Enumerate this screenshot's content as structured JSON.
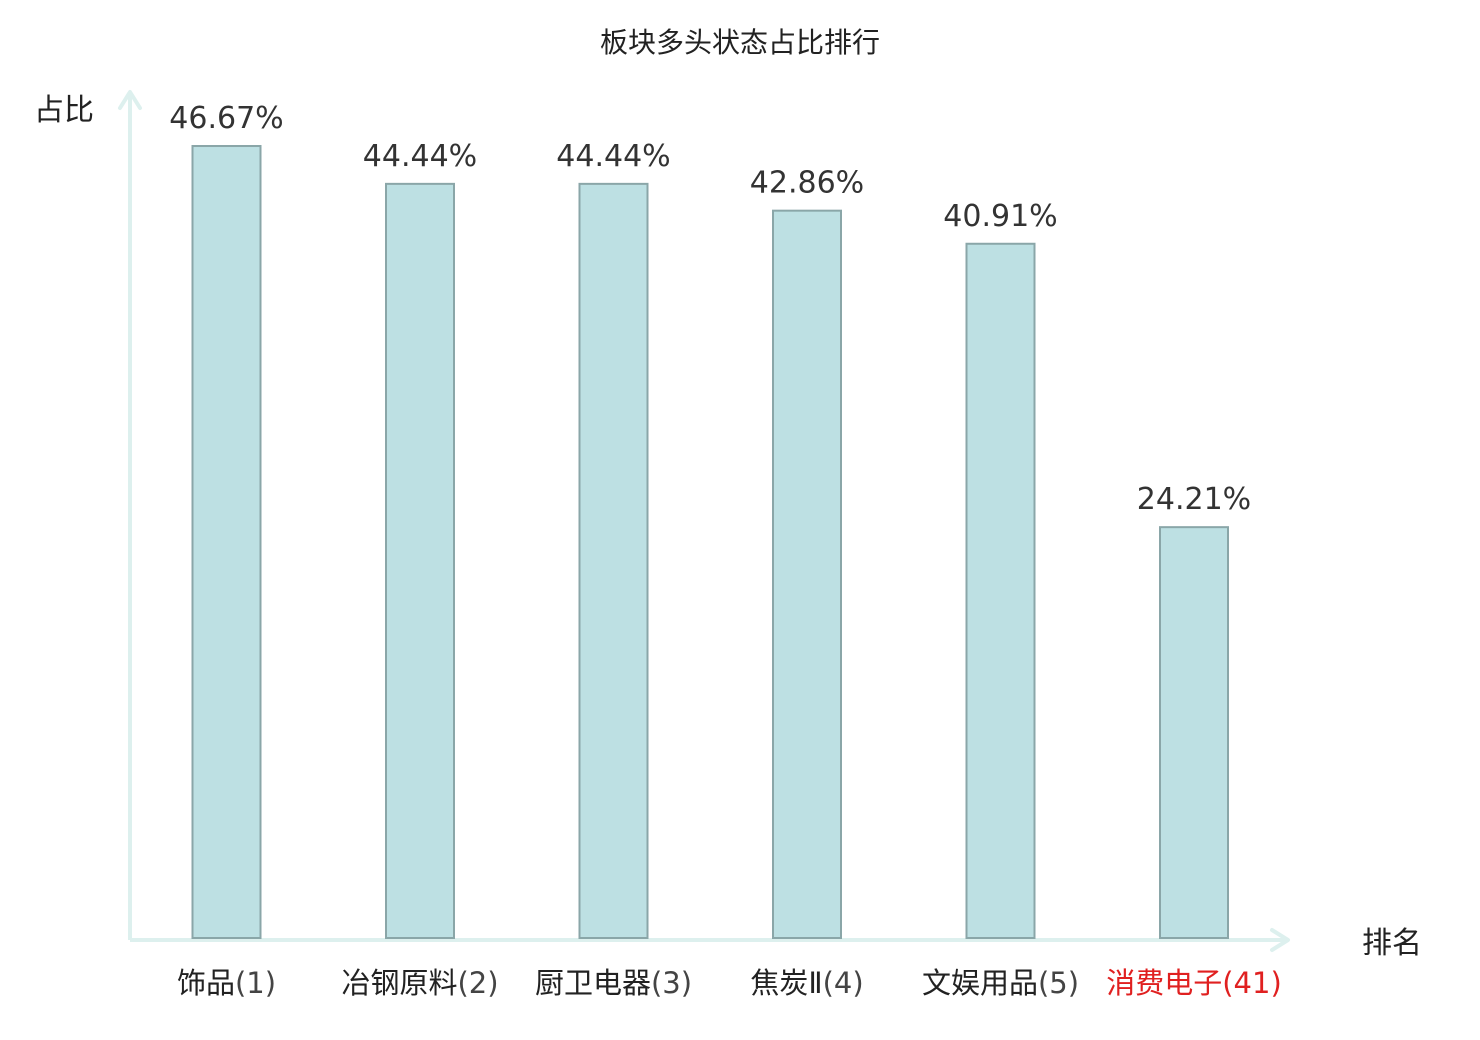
{
  "chart_data": {
    "type": "bar",
    "title": "板块多头状态占比排行",
    "ylabel": "占比",
    "xlabel": "排名",
    "ylim": [
      0,
      50
    ],
    "grid": false,
    "categories": [
      {
        "name": "饰品",
        "rank": "(1)",
        "highlight": false
      },
      {
        "name": "冶钢原料",
        "rank": "(2)",
        "highlight": false
      },
      {
        "name": "厨卫电器",
        "rank": "(3)",
        "highlight": false
      },
      {
        "name": "焦炭Ⅱ",
        "rank": "(4)",
        "highlight": false
      },
      {
        "name": "文娱用品",
        "rank": "(5)",
        "highlight": false
      },
      {
        "name": "消费电子",
        "rank": "(41)",
        "highlight": true
      }
    ],
    "values": [
      46.67,
      44.44,
      44.44,
      42.86,
      40.91,
      24.21
    ],
    "value_labels": [
      "46.67%",
      "44.44%",
      "44.44%",
      "42.86%",
      "40.91%",
      "24.21%"
    ]
  },
  "colors": {
    "bar_fill": "#bde0e3",
    "bar_stroke": "#8aa6a8",
    "axis": "#ddf0ee",
    "text": "#222222",
    "value_text": "#333333",
    "rank_text": "#444444",
    "highlight": "#e02020"
  }
}
